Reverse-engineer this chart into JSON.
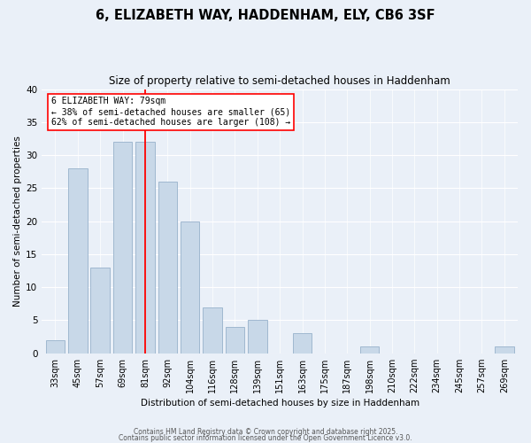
{
  "title": "6, ELIZABETH WAY, HADDENHAM, ELY, CB6 3SF",
  "subtitle": "Size of property relative to semi-detached houses in Haddenham",
  "xlabel": "Distribution of semi-detached houses by size in Haddenham",
  "ylabel": "Number of semi-detached properties",
  "categories": [
    "33sqm",
    "45sqm",
    "57sqm",
    "69sqm",
    "81sqm",
    "92sqm",
    "104sqm",
    "116sqm",
    "128sqm",
    "139sqm",
    "151sqm",
    "163sqm",
    "175sqm",
    "187sqm",
    "198sqm",
    "210sqm",
    "222sqm",
    "234sqm",
    "245sqm",
    "257sqm",
    "269sqm"
  ],
  "values": [
    2,
    28,
    13,
    32,
    32,
    26,
    20,
    7,
    4,
    5,
    0,
    3,
    0,
    0,
    1,
    0,
    0,
    0,
    0,
    0,
    1
  ],
  "bar_color": "#c8d8e8",
  "bar_edge_color": "#a0b8d0",
  "red_line_index": 4,
  "annotation_text_line1": "6 ELIZABETH WAY: 79sqm",
  "annotation_text_line2": "← 38% of semi-detached houses are smaller (65)",
  "annotation_text_line3": "62% of semi-detached houses are larger (108) →",
  "ylim": [
    0,
    40
  ],
  "yticks": [
    0,
    5,
    10,
    15,
    20,
    25,
    30,
    35,
    40
  ],
  "bg_color": "#eaf0f8",
  "footer_line1": "Contains HM Land Registry data © Crown copyright and database right 2025.",
  "footer_line2": "Contains public sector information licensed under the Open Government Licence v3.0."
}
